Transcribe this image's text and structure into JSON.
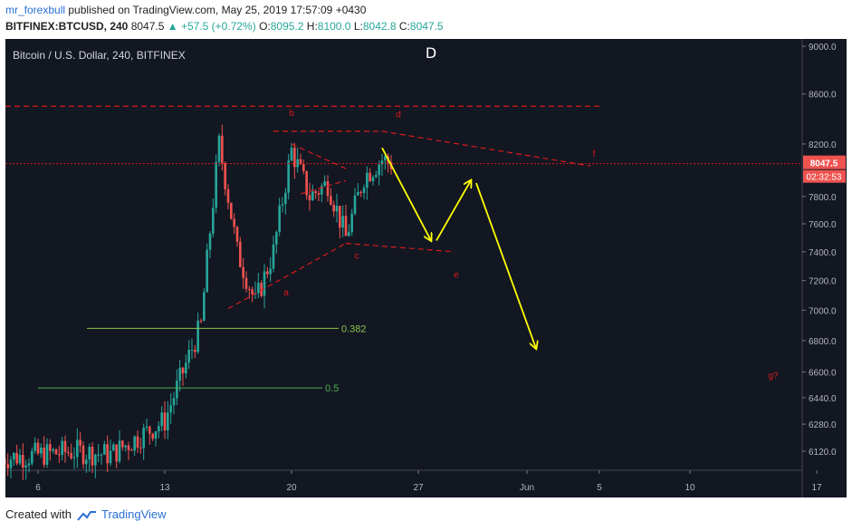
{
  "header": {
    "author": "mr_forexbull",
    "published": "published on TradingView.com, May 25, 2019 17:57:09 +0430",
    "symbol": "BITFINEX:BTCUSD, 240",
    "last": "8047.5",
    "change": "+57.5 (+0.72%)",
    "o_label": "O:",
    "o": "8095.2",
    "h_label": "H:",
    "h": "8100.0",
    "l_label": "L:",
    "l": "8042.8",
    "c_label": "C:",
    "c": "8047.5"
  },
  "footer": {
    "created_with": "Created with",
    "brand": "TradingView"
  },
  "colors": {
    "bg": "#131722",
    "up": "#26a69a",
    "down": "#ef5350",
    "annotation": "#d81b1b",
    "arrow": "#ffff00",
    "fib": "#8bc34a",
    "fib2": "#4caf50"
  },
  "chart_data": {
    "type": "candlestick",
    "title": "Bitcoin / U.S. Dollar, 240, BITFINEX",
    "x_tick_labels": [
      "6",
      "13",
      "20",
      "27",
      "Jun",
      "5",
      "10",
      "17"
    ],
    "y_tick_labels": [
      "9000.0",
      "8600.0",
      "8200.0",
      "7800.0",
      "7600.0",
      "7400.0",
      "7200.0",
      "7000.0",
      "6800.0",
      "6600.0",
      "6440.0",
      "6280.0",
      "6120.0"
    ],
    "y_scale": "log",
    "price_label": "8047.5",
    "countdown_label": "02:32:53",
    "grid": false,
    "series": [
      {
        "type": "close",
        "points": [
          [
            4,
            6080
          ],
          [
            8,
            6120
          ],
          [
            10,
            6100
          ],
          [
            13,
            6300
          ],
          [
            15,
            6900
          ],
          [
            16,
            8200
          ],
          [
            17,
            7400
          ],
          [
            18,
            7050
          ],
          [
            19,
            7400
          ],
          [
            20,
            8150
          ],
          [
            21,
            7800
          ],
          [
            22,
            7900
          ],
          [
            23,
            7500
          ],
          [
            24,
            7950
          ],
          [
            25,
            8080
          ],
          [
            25.6,
            8047.5
          ]
        ]
      }
    ],
    "annotations": {
      "labels": [
        {
          "text": "D",
          "x": 27.7,
          "y": 8900
        },
        {
          "text": "a",
          "x": 19.7,
          "y": 7100
        },
        {
          "text": "b",
          "x": 20.0,
          "y": 8420
        },
        {
          "text": "c",
          "x": 23.6,
          "y": 7350
        },
        {
          "text": "d",
          "x": 25.9,
          "y": 8410
        },
        {
          "text": "e",
          "x": 29.1,
          "y": 7220
        },
        {
          "text": "f",
          "x": 36.7,
          "y": 8100
        },
        {
          "text": "g?",
          "x": 46.6,
          "y": 6560
        }
      ],
      "fib": [
        {
          "label": "0.382",
          "value": 6880,
          "x_start": 8.7,
          "x_end": 22.6
        },
        {
          "label": "0.5",
          "value": 6500,
          "x_start": 6.0,
          "x_end": 21.7
        }
      ],
      "dashed_levels": [
        8500,
        8047.5
      ],
      "pattern_lines": [
        [
          [
            16.5,
            7010
          ],
          [
            23.0,
            7460
          ]
        ],
        [
          [
            23.0,
            7460
          ],
          [
            29.0,
            7400
          ]
        ],
        [
          [
            19.0,
            8300
          ],
          [
            25.0,
            8300
          ]
        ],
        [
          [
            25.0,
            8300
          ],
          [
            36.5,
            8030
          ]
        ],
        [
          [
            20.0,
            8200
          ],
          [
            23.0,
            8010
          ]
        ],
        [
          [
            20.5,
            7820
          ],
          [
            23.0,
            7920
          ]
        ]
      ],
      "arrows": [
        [
          [
            25.0,
            8170
          ],
          [
            27.7,
            7480
          ]
        ],
        [
          [
            28.0,
            7480
          ],
          [
            29.9,
            7920
          ]
        ],
        [
          [
            30.2,
            7900
          ],
          [
            33.5,
            6750
          ]
        ]
      ]
    }
  }
}
